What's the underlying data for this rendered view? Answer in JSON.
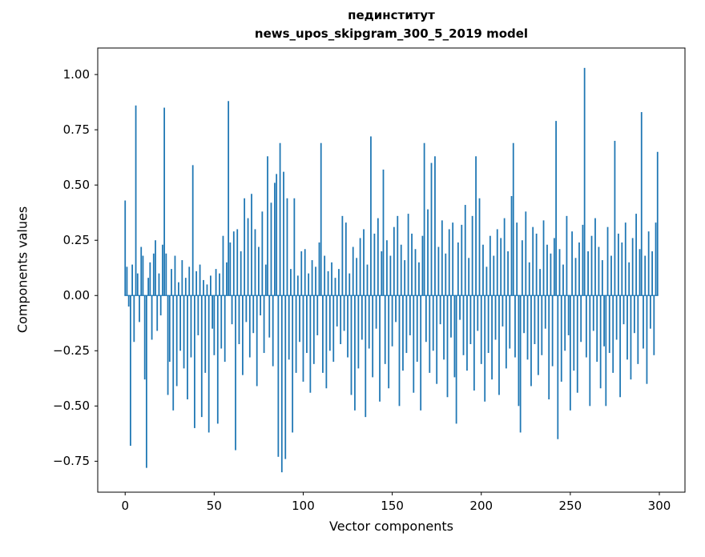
{
  "chart_data": {
    "type": "bar",
    "title": "пединститут",
    "subtitle": "news_upos_skipgram_300_5_2019 model",
    "xlabel": "Vector components",
    "ylabel": "Components values",
    "bar_color": "#1f77b4",
    "axis_color": "#000000",
    "xlim": [
      -15.4,
      314.4
    ],
    "ylim": [
      -0.89,
      1.12
    ],
    "bar_width": 0.8,
    "n_components": 300,
    "x_ticks": [
      {
        "value": 0,
        "label": "0"
      },
      {
        "value": 50,
        "label": "50"
      },
      {
        "value": 100,
        "label": "100"
      },
      {
        "value": 150,
        "label": "150"
      },
      {
        "value": 200,
        "label": "200"
      },
      {
        "value": 250,
        "label": "250"
      },
      {
        "value": 300,
        "label": "300"
      }
    ],
    "y_ticks": [
      {
        "value": 1.0,
        "label": "1.00"
      },
      {
        "value": 0.75,
        "label": "0.75"
      },
      {
        "value": 0.5,
        "label": "0.50"
      },
      {
        "value": 0.25,
        "label": "0.25"
      },
      {
        "value": 0.0,
        "label": "0.00"
      },
      {
        "value": -0.25,
        "label": "−0.25"
      },
      {
        "value": -0.5,
        "label": "−0.50"
      },
      {
        "value": -0.75,
        "label": "−0.75"
      }
    ],
    "values": [
      0.43,
      0.13,
      -0.05,
      -0.68,
      0.14,
      -0.21,
      0.86,
      0.1,
      -0.12,
      0.22,
      0.18,
      -0.38,
      -0.78,
      0.08,
      0.15,
      -0.2,
      0.19,
      0.25,
      -0.16,
      0.1,
      -0.09,
      0.23,
      0.85,
      0.19,
      -0.45,
      -0.3,
      0.12,
      -0.52,
      0.18,
      -0.41,
      0.06,
      -0.25,
      0.16,
      -0.33,
      0.08,
      -0.47,
      0.13,
      -0.28,
      0.59,
      -0.6,
      0.11,
      -0.18,
      0.14,
      -0.55,
      0.07,
      -0.35,
      0.05,
      -0.62,
      0.09,
      -0.15,
      -0.27,
      0.12,
      -0.58,
      0.1,
      -0.24,
      0.27,
      -0.3,
      0.15,
      0.88,
      0.24,
      -0.13,
      0.29,
      -0.7,
      0.3,
      -0.22,
      0.2,
      -0.36,
      0.44,
      -0.12,
      0.35,
      -0.28,
      0.46,
      -0.17,
      0.3,
      -0.41,
      0.22,
      -0.09,
      0.38,
      -0.26,
      0.14,
      0.63,
      -0.19,
      0.42,
      -0.32,
      0.51,
      0.55,
      -0.73,
      0.69,
      -0.8,
      0.56,
      -0.74,
      0.44,
      -0.29,
      0.12,
      -0.62,
      0.44,
      -0.35,
      0.09,
      -0.21,
      0.2,
      -0.39,
      0.21,
      -0.26,
      0.1,
      -0.44,
      0.16,
      -0.31,
      0.13,
      -0.18,
      0.24,
      0.69,
      -0.35,
      0.18,
      -0.42,
      0.11,
      -0.25,
      0.15,
      -0.3,
      0.08,
      -0.14,
      0.12,
      -0.22,
      0.36,
      -0.16,
      0.33,
      -0.28,
      0.1,
      -0.45,
      0.22,
      -0.52,
      0.17,
      -0.33,
      0.26,
      -0.2,
      0.3,
      -0.55,
      0.14,
      -0.24,
      0.72,
      -0.37,
      0.28,
      -0.15,
      0.35,
      -0.48,
      0.2,
      0.57,
      -0.31,
      0.25,
      -0.42,
      0.18,
      -0.23,
      0.31,
      -0.12,
      0.36,
      -0.5,
      0.23,
      -0.34,
      0.16,
      -0.26,
      0.37,
      -0.18,
      0.28,
      -0.44,
      0.21,
      -0.3,
      0.15,
      -0.52,
      0.27,
      0.69,
      -0.21,
      0.39,
      -0.35,
      0.6,
      -0.25,
      0.63,
      -0.4,
      0.22,
      -0.13,
      0.34,
      -0.29,
      0.19,
      -0.46,
      0.3,
      -0.19,
      0.33,
      -0.37,
      -0.58,
      0.24,
      -0.11,
      0.32,
      -0.27,
      0.41,
      -0.34,
      0.17,
      -0.22,
      0.36,
      -0.43,
      0.63,
      -0.16,
      0.44,
      -0.31,
      0.23,
      -0.48,
      0.13,
      -0.26,
      0.27,
      -0.38,
      0.18,
      -0.2,
      0.3,
      -0.45,
      0.26,
      -0.14,
      0.35,
      -0.33,
      0.2,
      -0.24,
      0.45,
      0.69,
      -0.28,
      0.33,
      -0.5,
      -0.62,
      0.25,
      -0.17,
      0.38,
      -0.29,
      0.15,
      -0.41,
      0.31,
      -0.22,
      0.28,
      -0.36,
      0.12,
      -0.27,
      0.34,
      -0.15,
      0.23,
      -0.47,
      0.19,
      -0.32,
      0.26,
      0.79,
      -0.65,
      0.21,
      -0.39,
      0.14,
      -0.25,
      0.36,
      -0.18,
      -0.52,
      0.29,
      -0.34,
      0.17,
      -0.44,
      0.24,
      -0.21,
      0.32,
      1.03,
      -0.28,
      0.2,
      -0.5,
      0.27,
      -0.16,
      0.35,
      -0.3,
      0.22,
      -0.42,
      0.16,
      -0.23,
      -0.5,
      0.31,
      -0.26,
      0.18,
      -0.35,
      0.7,
      -0.2,
      0.28,
      -0.46,
      0.24,
      -0.13,
      0.33,
      -0.29,
      0.15,
      -0.38,
      0.26,
      -0.17,
      0.37,
      -0.31,
      0.21,
      0.83,
      -0.24,
      0.18,
      -0.4,
      0.29,
      -0.15,
      0.2,
      -0.27,
      0.33,
      0.65
    ]
  }
}
